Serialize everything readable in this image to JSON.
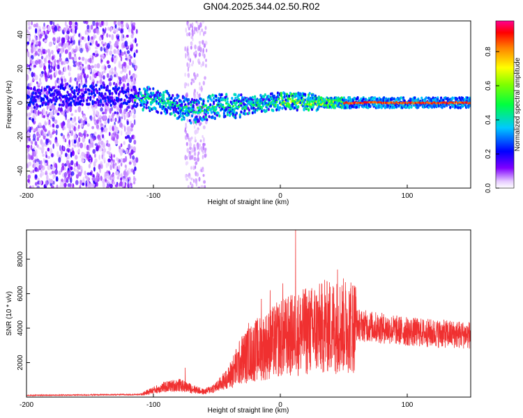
{
  "title": "GN04.2025.344.02.50.R02",
  "chart_data": [
    {
      "type": "heatmap",
      "name": "spectrogram",
      "xlabel": "Height of straight line (km)",
      "ylabel": "Frequency (Hz)",
      "xlim": [
        -200,
        150
      ],
      "ylim": [
        -50,
        48
      ],
      "xticks": [
        -200,
        -100,
        0,
        100
      ],
      "yticks": [
        -40,
        -20,
        0,
        20,
        40
      ],
      "colorbar": {
        "label": "Normalized spectral amplitude",
        "range": [
          0,
          0.98
        ],
        "ticks": [
          "0.0",
          "0.2",
          "0.4",
          "0.6",
          "0.8"
        ],
        "tick_values": [
          0,
          0.2,
          0.4,
          0.6,
          0.8
        ]
      },
      "ridge": [
        {
          "x": -200,
          "f": 3
        },
        {
          "x": -150,
          "f": 5
        },
        {
          "x": -110,
          "f": 3
        },
        {
          "x": -90,
          "f": 0
        },
        {
          "x": -70,
          "f": -5
        },
        {
          "x": -50,
          "f": -2
        },
        {
          "x": -30,
          "f": -2
        },
        {
          "x": 0,
          "f": 1
        },
        {
          "x": 50,
          "f": 0
        },
        {
          "x": 150,
          "f": 0
        }
      ],
      "noise_region_x": [
        -200,
        -113
      ],
      "sparse_noise_x": [
        -75,
        -58
      ]
    },
    {
      "type": "line",
      "name": "snr",
      "xlabel": "Height of straight line (km)",
      "ylabel": "SNR (10 * v/v)",
      "xlim": [
        -200,
        150
      ],
      "ylim": [
        0,
        9700
      ],
      "xticks": [
        -200,
        -100,
        0,
        100
      ],
      "yticks": [
        2000,
        4000,
        6000,
        8000
      ],
      "color": "#f03030",
      "envelope": [
        {
          "x": -200,
          "y": 100
        },
        {
          "x": -110,
          "y": 150
        },
        {
          "x": -100,
          "y": 400
        },
        {
          "x": -90,
          "y": 600
        },
        {
          "x": -80,
          "y": 700
        },
        {
          "x": -70,
          "y": 500
        },
        {
          "x": -60,
          "y": 300
        },
        {
          "x": -50,
          "y": 600
        },
        {
          "x": -40,
          "y": 1200
        },
        {
          "x": -30,
          "y": 2200
        },
        {
          "x": -20,
          "y": 2700
        },
        {
          "x": -10,
          "y": 3000
        },
        {
          "x": 0,
          "y": 3400
        },
        {
          "x": 20,
          "y": 3800
        },
        {
          "x": 40,
          "y": 4100
        },
        {
          "x": 60,
          "y": 4200
        },
        {
          "x": 80,
          "y": 4000
        },
        {
          "x": 100,
          "y": 3800
        },
        {
          "x": 120,
          "y": 3700
        },
        {
          "x": 150,
          "y": 3600
        }
      ],
      "spikes": [
        {
          "x": -75,
          "y": 1700
        },
        {
          "x": -35,
          "y": 2700
        },
        {
          "x": -25,
          "y": 4300
        },
        {
          "x": -15,
          "y": 5700
        },
        {
          "x": -8,
          "y": 6200
        },
        {
          "x": 2,
          "y": 6600
        },
        {
          "x": 12,
          "y": 9700
        },
        {
          "x": 20,
          "y": 6300
        },
        {
          "x": 27,
          "y": 6200
        },
        {
          "x": 35,
          "y": 6800
        },
        {
          "x": 45,
          "y": 7400
        },
        {
          "x": 55,
          "y": 6000
        }
      ]
    }
  ]
}
